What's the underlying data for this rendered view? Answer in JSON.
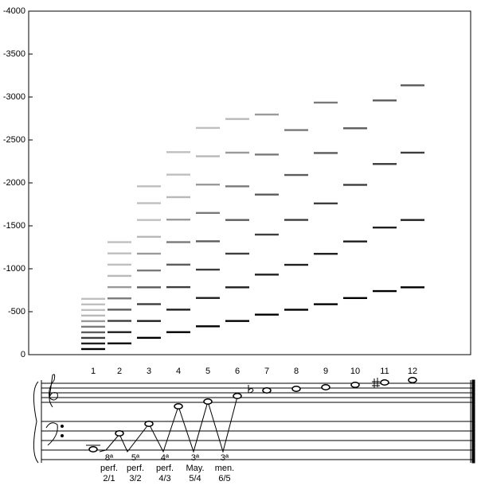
{
  "chart_data": {
    "type": "spectrum",
    "ylim": [
      0,
      -4000
    ],
    "yticks": [
      0,
      -500,
      -1000,
      -1500,
      -2000,
      -2500,
      -3000,
      -3500,
      -4000
    ],
    "categories": [
      "1",
      "2",
      "3",
      "4",
      "5",
      "6",
      "7",
      "8",
      "9",
      "10",
      "11",
      "12"
    ],
    "color": "#000000",
    "partials": [
      [
        -65,
        -130,
        -195,
        -260,
        -325,
        -390,
        -455,
        -520,
        -585,
        -650
      ],
      [
        -131,
        -262,
        -393,
        -524,
        -655,
        -786,
        -917,
        -1048,
        -1179,
        -1310
      ],
      [
        -196,
        -392,
        -588,
        -784,
        -980,
        -1176,
        -1372,
        -1568,
        -1764,
        -1960
      ],
      [
        -262,
        -524,
        -786,
        -1048,
        -1310,
        -1572,
        -1834,
        -2096,
        -2358
      ],
      [
        -330,
        -660,
        -990,
        -1320,
        -1650,
        -1980,
        -2310,
        -2640
      ],
      [
        -392,
        -784,
        -1176,
        -1568,
        -1960,
        -2352,
        -2744
      ],
      [
        -466,
        -932,
        -1398,
        -1864,
        -2330,
        -2796
      ],
      [
        -523,
        -1046,
        -1569,
        -2092,
        -2615
      ],
      [
        -587,
        -1174,
        -1761,
        -2348,
        -2935
      ],
      [
        -659,
        -1318,
        -1977,
        -2636
      ],
      [
        -740,
        -1480,
        -2220,
        -2960
      ],
      [
        -784,
        -1568,
        -2352,
        -3136
      ]
    ]
  },
  "staff": {
    "intervals": [
      [
        "8ª",
        "perf.",
        "2/1"
      ],
      [
        "5ª",
        "perf.",
        "3/2"
      ],
      [
        "4ª",
        "perf.",
        "4/3"
      ],
      [
        "3ª",
        "May.",
        "5/4"
      ],
      [
        "3ª",
        "men.",
        "6/5"
      ]
    ]
  }
}
